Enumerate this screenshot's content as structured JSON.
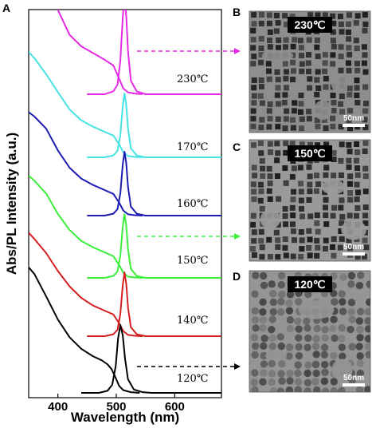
{
  "chart_data": {
    "type": "line",
    "panel": "A",
    "xlabel": "Wavelength (nm)",
    "ylabel": "Abs/PL Intensity (a.u.)",
    "xlim": [
      350,
      680
    ],
    "xticks": [
      400,
      500,
      600
    ],
    "grid": false,
    "legend": "none",
    "series": [
      {
        "name": "230℃",
        "color": "#e62be6",
        "abs": {
          "x": [
            350,
            360,
            380,
            400,
            420,
            440,
            460,
            480,
            495,
            505,
            512,
            520,
            530,
            545
          ],
          "y": [
            1.85,
            1.63,
            1.23,
            0.88,
            0.62,
            0.5,
            0.43,
            0.36,
            0.3,
            0.16,
            0.06,
            0.02,
            0.008,
            0
          ]
        },
        "pl": {
          "x": [
            450,
            480,
            495,
            502,
            507,
            511,
            514,
            517,
            520,
            525,
            535,
            550,
            680
          ],
          "y": [
            0,
            0,
            0.03,
            0.1,
            0.35,
            0.8,
            1.0,
            0.82,
            0.45,
            0.14,
            0.03,
            0,
            0
          ]
        }
      },
      {
        "name": "170℃",
        "color": "#47e3e3",
        "abs": {
          "x": [
            350,
            360,
            380,
            400,
            420,
            440,
            460,
            480,
            495,
            505,
            512,
            520,
            530,
            545
          ],
          "y": [
            1.65,
            1.55,
            1.3,
            1.02,
            0.75,
            0.58,
            0.48,
            0.4,
            0.34,
            0.2,
            0.08,
            0.02,
            0.008,
            0
          ]
        },
        "pl": {
          "x": [
            450,
            480,
            495,
            502,
            507,
            511,
            514,
            517,
            520,
            525,
            535,
            550,
            680
          ],
          "y": [
            0,
            0,
            0.03,
            0.1,
            0.35,
            0.8,
            1.0,
            0.82,
            0.45,
            0.14,
            0.03,
            0,
            0
          ]
        }
      },
      {
        "name": "160℃",
        "color": "#1c1cb5",
        "abs": {
          "x": [
            350,
            360,
            380,
            400,
            420,
            440,
            460,
            480,
            495,
            505,
            512,
            520,
            530,
            545
          ],
          "y": [
            1.62,
            1.55,
            1.36,
            1.02,
            0.75,
            0.58,
            0.48,
            0.4,
            0.34,
            0.2,
            0.08,
            0.02,
            0.008,
            0
          ]
        },
        "pl": {
          "x": [
            450,
            480,
            495,
            502,
            507,
            511,
            514,
            517,
            520,
            525,
            535,
            550,
            680
          ],
          "y": [
            0,
            0,
            0.03,
            0.1,
            0.35,
            0.8,
            1.0,
            0.82,
            0.45,
            0.14,
            0.03,
            0,
            0
          ]
        }
      },
      {
        "name": "150℃",
        "color": "#3cef3c",
        "abs": {
          "x": [
            350,
            360,
            380,
            400,
            420,
            440,
            460,
            480,
            495,
            505,
            512,
            520,
            530,
            545
          ],
          "y": [
            1.6,
            1.52,
            1.32,
            1.0,
            0.75,
            0.58,
            0.48,
            0.4,
            0.34,
            0.2,
            0.08,
            0.02,
            0.008,
            0
          ]
        },
        "pl": {
          "x": [
            450,
            480,
            495,
            502,
            507,
            511,
            514,
            517,
            520,
            525,
            535,
            550,
            680
          ],
          "y": [
            0,
            0,
            0.03,
            0.1,
            0.35,
            0.8,
            1.0,
            0.82,
            0.45,
            0.14,
            0.03,
            0,
            0
          ]
        }
      },
      {
        "name": "140℃",
        "color": "#d42020",
        "abs": {
          "x": [
            350,
            360,
            380,
            400,
            420,
            440,
            460,
            480,
            495,
            505,
            512,
            520,
            530,
            545
          ],
          "y": [
            1.62,
            1.52,
            1.3,
            1.02,
            0.78,
            0.6,
            0.48,
            0.4,
            0.34,
            0.2,
            0.08,
            0.02,
            0.008,
            0
          ]
        },
        "pl": {
          "x": [
            450,
            480,
            495,
            502,
            507,
            511,
            514,
            517,
            520,
            525,
            535,
            550,
            680
          ],
          "y": [
            0,
            0,
            0.03,
            0.1,
            0.35,
            0.8,
            1.0,
            0.82,
            0.45,
            0.14,
            0.03,
            0,
            0
          ]
        }
      },
      {
        "name": "120℃",
        "color": "#000000",
        "abs": {
          "x": [
            350,
            360,
            380,
            400,
            420,
            440,
            460,
            475,
            485,
            492,
            498,
            505,
            512,
            525,
            540
          ],
          "y": [
            1.85,
            1.75,
            1.42,
            1.08,
            0.82,
            0.65,
            0.54,
            0.48,
            0.42,
            0.35,
            0.24,
            0.1,
            0.04,
            0.01,
            0
          ]
        },
        "pl": {
          "x": [
            440,
            470,
            485,
            493,
            499,
            503,
            507,
            511,
            515,
            520,
            530,
            545,
            560,
            680
          ],
          "y": [
            0,
            0,
            0.03,
            0.12,
            0.4,
            0.8,
            1.0,
            0.85,
            0.5,
            0.2,
            0.05,
            0.01,
            0,
            0
          ]
        }
      }
    ],
    "curve_labels": [
      "230℃",
      "170℃",
      "160℃",
      "150℃",
      "140℃",
      "120℃"
    ]
  },
  "panels": {
    "a_label": "A",
    "b_label": "B",
    "c_label": "C",
    "d_label": "D"
  },
  "tem": [
    {
      "temp": "230℃",
      "scale": "50nm",
      "particle": "cube",
      "arrow_color": "#e62be6"
    },
    {
      "temp": "150℃",
      "scale": "50nm",
      "particle": "cube",
      "arrow_color": "#3cef3c"
    },
    {
      "temp": "120℃",
      "scale": "50nm",
      "particle": "sphere",
      "arrow_color": "#000000"
    }
  ]
}
